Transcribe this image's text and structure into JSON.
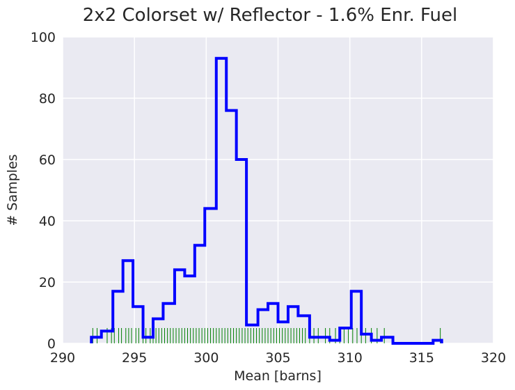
{
  "chart_data": {
    "type": "histogram",
    "title": "2x2 Colorset w/ Reflector - 1.6% Enr. Fuel",
    "xlabel": "Mean [barns]",
    "ylabel": "# Samples",
    "xlim": [
      290,
      320
    ],
    "ylim": [
      0,
      100
    ],
    "xticks": [
      290,
      295,
      300,
      305,
      310,
      315,
      320
    ],
    "yticks": [
      0,
      20,
      40,
      60,
      80,
      100
    ],
    "grid": true,
    "background_color": "#eaeaf2",
    "histogram": {
      "color": "#0000ff",
      "bin_edges": [
        292.0,
        292.7,
        293.5,
        294.2,
        294.9,
        295.6,
        296.3,
        297.0,
        297.8,
        298.5,
        299.2,
        299.9,
        300.7,
        301.4,
        302.1,
        302.8,
        303.6,
        304.3,
        305.0,
        305.7,
        306.4,
        307.2,
        307.9,
        308.6,
        309.3,
        310.1,
        310.8,
        311.5,
        312.2,
        313.0,
        313.7,
        314.4,
        315.1,
        315.8,
        316.4
      ],
      "counts": [
        2,
        4,
        17,
        27,
        12,
        2,
        8,
        13,
        24,
        22,
        32,
        44,
        93,
        76,
        60,
        6,
        11,
        13,
        7,
        12,
        9,
        2,
        2,
        1,
        5,
        17,
        3,
        1,
        2,
        0,
        0,
        0,
        0,
        1
      ]
    },
    "rug": {
      "color": "#008000",
      "height": 5,
      "values": [
        292.1,
        292.4,
        293.1,
        293.4,
        293.6,
        293.9,
        294.1,
        294.4,
        294.6,
        294.8,
        295.1,
        295.3,
        295.6,
        295.8,
        296.1,
        296.3,
        296.5,
        296.7,
        296.9,
        297.1,
        297.3,
        297.5,
        297.7,
        297.9,
        298.1,
        298.3,
        298.5,
        298.7,
        298.9,
        299.1,
        299.3,
        299.5,
        299.7,
        299.9,
        300.1,
        300.3,
        300.5,
        300.7,
        300.9,
        301.1,
        301.3,
        301.5,
        301.7,
        301.9,
        302.1,
        302.3,
        302.5,
        302.7,
        302.9,
        303.1,
        303.3,
        303.5,
        303.7,
        303.9,
        304.1,
        304.3,
        304.5,
        304.7,
        304.9,
        305.1,
        305.3,
        305.5,
        305.7,
        305.9,
        306.1,
        306.3,
        306.5,
        306.7,
        306.9,
        307.2,
        307.5,
        307.8,
        308.3,
        308.6,
        309.0,
        309.3,
        309.6,
        309.9,
        310.2,
        310.5,
        310.8,
        311.1,
        311.5,
        311.9,
        312.4,
        316.3
      ]
    }
  }
}
